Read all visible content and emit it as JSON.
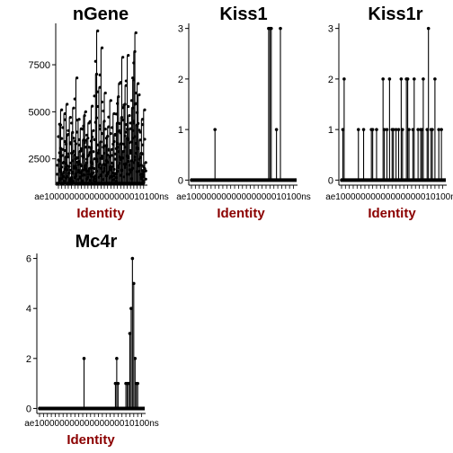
{
  "colors": {
    "background": "#ffffff",
    "axis": "#000000",
    "points": "#000000",
    "axis_title": "#8b0000",
    "highlight": "#1f9fc0"
  },
  "chart_data": [
    {
      "type": "scatter",
      "title": "nGene",
      "xlabel": "Identity",
      "ylabel": "",
      "ylim": [
        1100,
        9700
      ],
      "yticks": [
        2500,
        5000,
        7500
      ],
      "x_tick_label_text": "ae10000000000000000010100ns",
      "x": [
        1,
        2,
        3,
        4,
        5,
        6,
        7,
        8,
        9,
        10,
        11,
        12,
        13,
        14,
        15,
        16,
        17,
        18,
        19,
        20,
        21,
        22,
        23,
        24,
        25,
        26,
        27,
        28,
        29,
        30,
        31,
        32,
        33,
        34,
        35,
        36,
        37,
        38,
        39,
        40,
        41,
        42,
        43,
        44,
        45,
        46,
        47,
        48,
        49,
        50,
        51,
        52,
        53,
        54,
        55,
        56,
        57,
        58,
        59,
        60,
        61,
        62,
        63,
        64,
        65,
        66,
        67,
        68,
        69,
        70,
        71,
        72,
        73,
        74,
        75,
        76,
        77,
        78,
        79,
        80
      ],
      "values": [
        2400,
        4300,
        5100,
        3000,
        1800,
        4900,
        2600,
        5400,
        3800,
        2100,
        4700,
        1500,
        3900,
        5200,
        2700,
        3300,
        6800,
        2200,
        4600,
        2900,
        4100,
        1900,
        3500,
        4800,
        5000,
        2300,
        3600,
        4400,
        2000,
        3100,
        5300,
        4000,
        2500,
        1600,
        7000,
        9300,
        2800,
        6300,
        3400,
        8400,
        2200,
        4500,
        6000,
        3200,
        3700,
        4200,
        2600,
        5600,
        3000,
        2100,
        4900,
        3800,
        1700,
        4400,
        5800,
        6500,
        3300,
        4700,
        7900,
        2900,
        5400,
        6400,
        3600,
        8000,
        4800,
        4100,
        2400,
        5200,
        6700,
        8200,
        9200,
        4300,
        6500,
        5900,
        3500,
        2800,
        4600,
        1800,
        5100,
        2300
      ],
      "point_min": [
        1200,
        1200,
        1300,
        1200,
        1200,
        1200,
        1200,
        1300,
        1200,
        1200,
        1200,
        1200,
        1200,
        1200,
        1200,
        1300,
        1200,
        1200,
        1200,
        1200,
        1200,
        1200,
        1200,
        1200,
        1200,
        1200,
        1200,
        1200,
        1200,
        1200,
        1200,
        1200,
        1200,
        1200,
        1200,
        1200,
        1200,
        1200,
        1200,
        1200,
        1200,
        1200,
        1200,
        1200,
        1200,
        1200,
        1200,
        1200,
        1200,
        1200,
        1200,
        1200,
        1200,
        1200,
        1200,
        1200,
        1200,
        1200,
        1200,
        1200,
        1200,
        1200,
        1200,
        1200,
        1200,
        1200,
        1200,
        1200,
        1200,
        1200,
        1200,
        1200,
        1200,
        1200,
        1200,
        1200,
        1200,
        1200,
        1200,
        1200
      ]
    },
    {
      "type": "scatter",
      "title": "Kiss1",
      "xlabel": "Identity",
      "ylabel": "",
      "ylim": [
        -0.1,
        3.1
      ],
      "yticks": [
        0,
        1,
        2,
        3
      ],
      "x_tick_label_text": "ae10000000000000000010100ns",
      "x": [
        1,
        2,
        3,
        4,
        5,
        6,
        7,
        8,
        9,
        10,
        11,
        12,
        13,
        14,
        15,
        16,
        17,
        18,
        19,
        20,
        21,
        22,
        23,
        24,
        25,
        26,
        27,
        28,
        29,
        30,
        31,
        32,
        33,
        34,
        35,
        36,
        37,
        38,
        39,
        40,
        41,
        42,
        43,
        44,
        45,
        46,
        47,
        48,
        49,
        50,
        51,
        52,
        53,
        54,
        55,
        56,
        57,
        58,
        59,
        60,
        61,
        62,
        63,
        64,
        65,
        66,
        67,
        68,
        69,
        70,
        71,
        72,
        73,
        74,
        75,
        76,
        77,
        78,
        79,
        80
      ],
      "values": [
        0,
        0,
        0,
        0,
        0,
        0,
        0,
        0,
        0,
        0,
        0,
        0,
        0,
        0,
        0,
        0,
        0,
        0,
        1,
        0,
        0,
        0,
        0,
        0,
        0,
        0,
        0,
        0,
        0,
        0,
        0,
        0,
        0,
        0,
        0,
        0,
        0,
        0,
        0,
        0,
        0,
        0,
        0,
        0,
        0,
        0,
        0,
        0,
        0,
        0,
        0,
        0,
        0,
        0,
        0,
        0,
        0,
        0,
        0,
        3,
        3,
        3,
        0,
        0,
        0,
        1,
        0,
        0,
        3,
        0,
        0,
        0,
        0,
        0,
        0,
        0,
        0,
        0,
        0,
        0
      ],
      "point_min": [
        0,
        0,
        0,
        0,
        0,
        0,
        0,
        0,
        0,
        0,
        0,
        0,
        0,
        0,
        0,
        0,
        0,
        0,
        0,
        0,
        0,
        0,
        0,
        0,
        0,
        0,
        0,
        0,
        0,
        0,
        0,
        0,
        0,
        0,
        0,
        0,
        0,
        0,
        0,
        0,
        0,
        0,
        0,
        0,
        0,
        0,
        0,
        0,
        0,
        0,
        0,
        0,
        0,
        0,
        0,
        0,
        0,
        0,
        0,
        0,
        0,
        0,
        0,
        0,
        0,
        0,
        0,
        0,
        0,
        0,
        0,
        0,
        0,
        0,
        0,
        0,
        0,
        0,
        0,
        0
      ]
    },
    {
      "type": "scatter",
      "title": "Kiss1r",
      "xlabel": "Identity",
      "ylabel": "",
      "ylim": [
        -0.1,
        3.1
      ],
      "yticks": [
        0,
        1,
        2,
        3
      ],
      "x_tick_label_text": "ae10000000000000000010100ns",
      "x": [
        1,
        2,
        3,
        4,
        5,
        6,
        7,
        8,
        9,
        10,
        11,
        12,
        13,
        14,
        15,
        16,
        17,
        18,
        19,
        20,
        21,
        22,
        23,
        24,
        25,
        26,
        27,
        28,
        29,
        30,
        31,
        32,
        33,
        34,
        35,
        36,
        37,
        38,
        39,
        40,
        41,
        42,
        43,
        44,
        45,
        46,
        47,
        48,
        49,
        50,
        51,
        52,
        53,
        54,
        55,
        56,
        57,
        58,
        59,
        60,
        61,
        62,
        63,
        64,
        65,
        66,
        67,
        68,
        69,
        70,
        71,
        72,
        73,
        74,
        75,
        76,
        77,
        78,
        79,
        80
      ],
      "values": [
        0,
        1,
        2,
        0,
        0,
        0,
        0,
        0,
        0,
        0,
        0,
        0,
        0,
        1,
        0,
        0,
        0,
        1,
        0,
        0,
        0,
        0,
        0,
        1,
        1,
        0,
        0,
        1,
        0,
        0,
        0,
        0,
        2,
        1,
        0,
        1,
        0,
        2,
        0,
        1,
        1,
        0,
        1,
        0,
        1,
        0,
        2,
        1,
        0,
        0,
        2,
        2,
        1,
        0,
        0,
        1,
        2,
        0,
        0,
        1,
        0,
        1,
        1,
        2,
        0,
        0,
        1,
        3,
        0,
        1,
        1,
        0,
        2,
        0,
        0,
        1,
        0,
        1,
        0,
        0
      ],
      "point_min": [
        0,
        0,
        0,
        0,
        0,
        0,
        0,
        0,
        0,
        0,
        0,
        0,
        0,
        0,
        0,
        0,
        0,
        0,
        0,
        0,
        0,
        0,
        0,
        0,
        0,
        0,
        0,
        0,
        0,
        0,
        0,
        0,
        0,
        0,
        0,
        0,
        0,
        0,
        0,
        0,
        0,
        0,
        0,
        0,
        0,
        0,
        0,
        0,
        0,
        0,
        0,
        0,
        0,
        0,
        0,
        0,
        0,
        0,
        0,
        0,
        0,
        0,
        0,
        0,
        0,
        0,
        0,
        0,
        0,
        0,
        0,
        0,
        0,
        0,
        0,
        0,
        0,
        0,
        0,
        0
      ]
    },
    {
      "type": "scatter",
      "title": "Mc4r",
      "xlabel": "Identity",
      "ylabel": "",
      "ylim": [
        -0.2,
        6.2
      ],
      "yticks": [
        0,
        2,
        4,
        6
      ],
      "x_tick_label_text": "ae10000000000000000010100ns",
      "x": [
        1,
        2,
        3,
        4,
        5,
        6,
        7,
        8,
        9,
        10,
        11,
        12,
        13,
        14,
        15,
        16,
        17,
        18,
        19,
        20,
        21,
        22,
        23,
        24,
        25,
        26,
        27,
        28,
        29,
        30,
        31,
        32,
        33,
        34,
        35,
        36,
        37,
        38,
        39,
        40,
        41,
        42,
        43,
        44,
        45,
        46,
        47,
        48,
        49,
        50,
        51,
        52,
        53,
        54,
        55,
        56,
        57,
        58,
        59,
        60,
        61,
        62,
        63,
        64,
        65,
        66,
        67,
        68,
        69,
        70,
        71,
        72,
        73,
        74,
        75,
        76,
        77,
        78,
        79,
        80
      ],
      "values": [
        0,
        0,
        0,
        0,
        0,
        0,
        0,
        0,
        0,
        0,
        0,
        0,
        0,
        0,
        0,
        0,
        0,
        0,
        0,
        0,
        0,
        0,
        0,
        0,
        0,
        0,
        0,
        0,
        0,
        0,
        0,
        0,
        0,
        0,
        2,
        0,
        0,
        0,
        0,
        0,
        0,
        0,
        0,
        0,
        0,
        0,
        0,
        0,
        0,
        0,
        0,
        0,
        0,
        0,
        0,
        0,
        0,
        0,
        1,
        2,
        1,
        0,
        0,
        0,
        0,
        0,
        1,
        1,
        1,
        3,
        4,
        6,
        5,
        2,
        1,
        1,
        0,
        0,
        0,
        0
      ],
      "point_min": [
        0,
        0,
        0,
        0,
        0,
        0,
        0,
        0,
        0,
        0,
        0,
        0,
        0,
        0,
        0,
        0,
        0,
        0,
        0,
        0,
        0,
        0,
        0,
        0,
        0,
        0,
        0,
        0,
        0,
        0,
        0,
        0,
        0,
        0,
        0,
        0,
        0,
        0,
        0,
        0,
        0,
        0,
        0,
        0,
        0,
        0,
        0,
        0,
        0,
        0,
        0,
        0,
        0,
        0,
        0,
        0,
        0,
        0,
        0,
        0,
        0,
        0,
        0,
        0,
        0,
        0,
        0,
        0,
        0,
        0,
        0,
        0,
        0,
        0,
        0,
        0,
        0,
        0,
        0,
        0
      ]
    }
  ]
}
